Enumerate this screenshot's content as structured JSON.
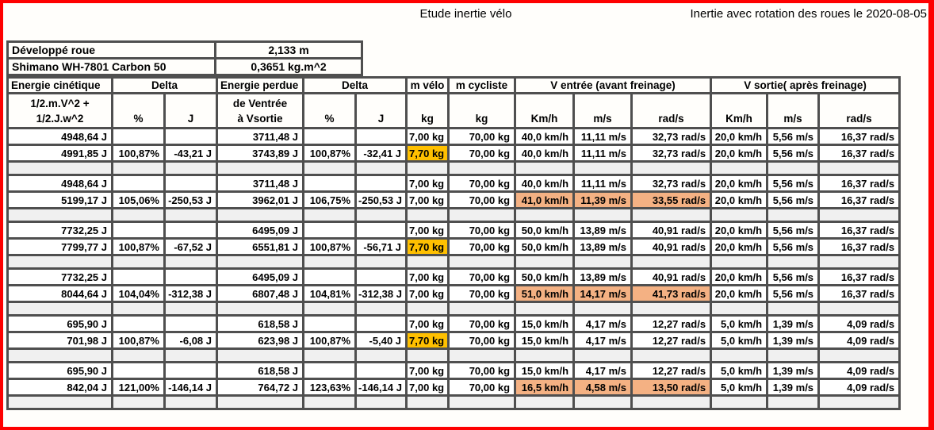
{
  "page": {
    "title_center": "Etude inertie vélo",
    "title_right": "Inertie avec rotation des roues le 2020-08-05"
  },
  "colors": {
    "red_border": "#fe0000",
    "grid": "#4f4f4f",
    "gold": "#ffc000",
    "peach": "#f4b183",
    "spacer_gray": "#f0f0f0"
  },
  "info_table": {
    "rows": [
      {
        "label": "Développé roue",
        "value": "2,133 m"
      },
      {
        "label": "Shimano WH-7801 Carbon 50",
        "value": "0,3651 kg.m^2"
      }
    ]
  },
  "table": {
    "header": {
      "energie_cinetique": "Energie cinétique",
      "energie_cinetique_sub1": "1/2.m.V^2 +",
      "energie_cinetique_sub2": "1/2.J.w^2",
      "delta1": "Delta",
      "pct1": "%",
      "joules1": "J",
      "energie_perdue": "Energie perdue",
      "energie_perdue_sub1": "de Ventrée",
      "energie_perdue_sub2": "à Vsortie",
      "delta2": "Delta",
      "pct2": "%",
      "joules2": "J",
      "m_velo": "m vélo",
      "m_velo_unit": "kg",
      "m_cycliste": "m cycliste",
      "m_cycliste_unit": "kg",
      "v_entree": "V entrée (avant freinage)",
      "v_entree_kmh": "Km/h",
      "v_entree_ms": "m/s",
      "v_entree_rads": "rad/s",
      "v_sortie": "V sortie( après freinage)",
      "v_sortie_kmh": "Km/h",
      "v_sortie_ms": "m/s",
      "v_sortie_rads": "rad/s"
    },
    "rows": [
      {
        "cells": [
          "4948,64 J",
          "",
          "",
          "3711,48 J",
          "",
          "",
          "7,00 kg",
          "70,00 kg",
          "40,0 km/h",
          "11,11 m/s",
          "32,73 rad/s",
          "20,0 km/h",
          "5,56 m/s",
          "16,37 rad/s"
        ]
      },
      {
        "cells": [
          "4991,85 J",
          "100,87%",
          "-43,21 J",
          "3743,89 J",
          "100,87%",
          "-32,41 J",
          "7,70 kg",
          "70,00 kg",
          "40,0 km/h",
          "11,11 m/s",
          "32,73 rad/s",
          "20,0 km/h",
          "5,56 m/s",
          "16,37 rad/s"
        ],
        "hl": {
          "6": "gold"
        }
      },
      {
        "spacer": true
      },
      {
        "cells": [
          "4948,64 J",
          "",
          "",
          "3711,48 J",
          "",
          "",
          "7,00 kg",
          "70,00 kg",
          "40,0 km/h",
          "11,11 m/s",
          "32,73 rad/s",
          "20,0 km/h",
          "5,56 m/s",
          "16,37 rad/s"
        ]
      },
      {
        "cells": [
          "5199,17 J",
          "105,06%",
          "-250,53 J",
          "3962,01 J",
          "106,75%",
          "-250,53 J",
          "7,00 kg",
          "70,00 kg",
          "41,0 km/h",
          "11,39 m/s",
          "33,55 rad/s",
          "20,0 km/h",
          "5,56 m/s",
          "16,37 rad/s"
        ],
        "hl": {
          "8": "peach",
          "9": "peach",
          "10": "peach"
        }
      },
      {
        "spacer": true
      },
      {
        "cells": [
          "7732,25 J",
          "",
          "",
          "6495,09 J",
          "",
          "",
          "7,00 kg",
          "70,00 kg",
          "50,0 km/h",
          "13,89 m/s",
          "40,91 rad/s",
          "20,0 km/h",
          "5,56 m/s",
          "16,37 rad/s"
        ]
      },
      {
        "cells": [
          "7799,77 J",
          "100,87%",
          "-67,52 J",
          "6551,81 J",
          "100,87%",
          "-56,71 J",
          "7,70 kg",
          "70,00 kg",
          "50,0 km/h",
          "13,89 m/s",
          "40,91 rad/s",
          "20,0 km/h",
          "5,56 m/s",
          "16,37 rad/s"
        ],
        "hl": {
          "6": "gold"
        }
      },
      {
        "spacer": true
      },
      {
        "cells": [
          "7732,25 J",
          "",
          "",
          "6495,09 J",
          "",
          "",
          "7,00 kg",
          "70,00 kg",
          "50,0 km/h",
          "13,89 m/s",
          "40,91 rad/s",
          "20,0 km/h",
          "5,56 m/s",
          "16,37 rad/s"
        ]
      },
      {
        "cells": [
          "8044,64 J",
          "104,04%",
          "-312,38 J",
          "6807,48 J",
          "104,81%",
          "-312,38 J",
          "7,00 kg",
          "70,00 kg",
          "51,0 km/h",
          "14,17 m/s",
          "41,73 rad/s",
          "20,0 km/h",
          "5,56 m/s",
          "16,37 rad/s"
        ],
        "hl": {
          "8": "peach",
          "9": "peach",
          "10": "peach"
        }
      },
      {
        "spacer": true
      },
      {
        "cells": [
          "695,90 J",
          "",
          "",
          "618,58 J",
          "",
          "",
          "7,00 kg",
          "70,00 kg",
          "15,0 km/h",
          "4,17 m/s",
          "12,27 rad/s",
          "5,0 km/h",
          "1,39 m/s",
          "4,09 rad/s"
        ]
      },
      {
        "cells": [
          "701,98 J",
          "100,87%",
          "-6,08 J",
          "623,98 J",
          "100,87%",
          "-5,40 J",
          "7,70 kg",
          "70,00 kg",
          "15,0 km/h",
          "4,17 m/s",
          "12,27 rad/s",
          "5,0 km/h",
          "1,39 m/s",
          "4,09 rad/s"
        ],
        "hl": {
          "6": "gold"
        }
      },
      {
        "spacer": true
      },
      {
        "cells": [
          "695,90 J",
          "",
          "",
          "618,58 J",
          "",
          "",
          "7,00 kg",
          "70,00 kg",
          "15,0 km/h",
          "4,17 m/s",
          "12,27 rad/s",
          "5,0 km/h",
          "1,39 m/s",
          "4,09 rad/s"
        ]
      },
      {
        "cells": [
          "842,04 J",
          "121,00%",
          "-146,14 J",
          "764,72 J",
          "123,63%",
          "-146,14 J",
          "7,00 kg",
          "70,00 kg",
          "16,5 km/h",
          "4,58 m/s",
          "13,50 rad/s",
          "5,0 km/h",
          "1,39 m/s",
          "4,09 rad/s"
        ],
        "hl": {
          "8": "peach",
          "9": "peach",
          "10": "peach"
        }
      },
      {
        "spacer": true
      }
    ]
  }
}
